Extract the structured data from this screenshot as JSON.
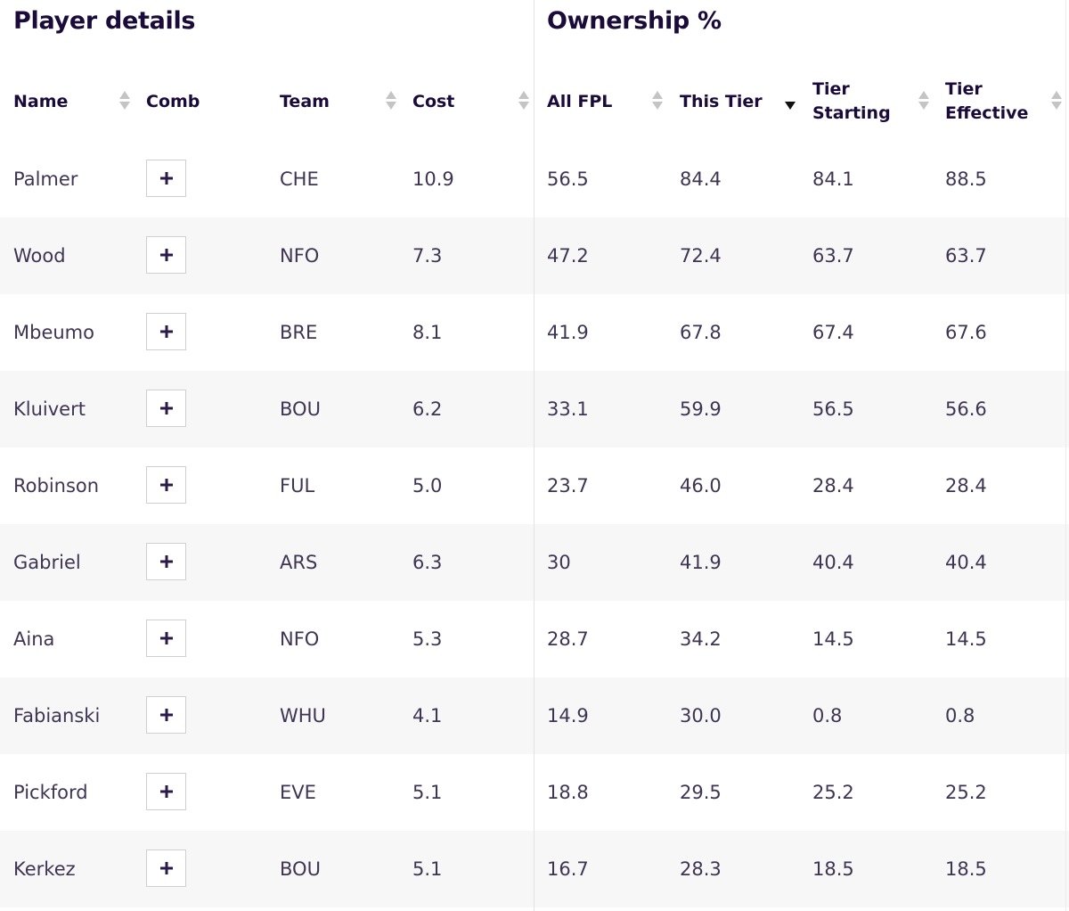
{
  "headings": {
    "player_details": "Player details",
    "ownership": "Ownership %"
  },
  "columns": [
    {
      "key": "name",
      "label": "Name",
      "sort": "none"
    },
    {
      "key": "comb",
      "label": "Comb"
    },
    {
      "key": "team",
      "label": "Team",
      "sort": "none"
    },
    {
      "key": "cost",
      "label": "Cost",
      "sort": "none"
    },
    {
      "key": "all_fpl",
      "label": "All FPL",
      "sort": "none"
    },
    {
      "key": "this_tier",
      "label": "This Tier",
      "sort": "descending"
    },
    {
      "key": "tier_starting",
      "label": "Tier\nStarting",
      "sort": "none"
    },
    {
      "key": "tier_effective",
      "label": "Tier\nEffective",
      "sort": "none"
    }
  ],
  "add_icon": "plus-icon",
  "rows": [
    {
      "name": "Palmer",
      "team": "CHE",
      "cost": "10.9",
      "all_fpl": "56.5",
      "this_tier": "84.4",
      "tier_starting": "84.1",
      "tier_effective": "88.5"
    },
    {
      "name": "Wood",
      "team": "NFO",
      "cost": "7.3",
      "all_fpl": "47.2",
      "this_tier": "72.4",
      "tier_starting": "63.7",
      "tier_effective": "63.7"
    },
    {
      "name": "Mbeumo",
      "team": "BRE",
      "cost": "8.1",
      "all_fpl": "41.9",
      "this_tier": "67.8",
      "tier_starting": "67.4",
      "tier_effective": "67.6"
    },
    {
      "name": "Kluivert",
      "team": "BOU",
      "cost": "6.2",
      "all_fpl": "33.1",
      "this_tier": "59.9",
      "tier_starting": "56.5",
      "tier_effective": "56.6"
    },
    {
      "name": "Robinson",
      "team": "FUL",
      "cost": "5.0",
      "all_fpl": "23.7",
      "this_tier": "46.0",
      "tier_starting": "28.4",
      "tier_effective": "28.4"
    },
    {
      "name": "Gabriel",
      "team": "ARS",
      "cost": "6.3",
      "all_fpl": "30",
      "this_tier": "41.9",
      "tier_starting": "40.4",
      "tier_effective": "40.4"
    },
    {
      "name": "Aina",
      "team": "NFO",
      "cost": "5.3",
      "all_fpl": "28.7",
      "this_tier": "34.2",
      "tier_starting": "14.5",
      "tier_effective": "14.5"
    },
    {
      "name": "Fabianski",
      "team": "WHU",
      "cost": "4.1",
      "all_fpl": "14.9",
      "this_tier": "30.0",
      "tier_starting": "0.8",
      "tier_effective": "0.8"
    },
    {
      "name": "Pickford",
      "team": "EVE",
      "cost": "5.1",
      "all_fpl": "18.8",
      "this_tier": "29.5",
      "tier_starting": "25.2",
      "tier_effective": "25.2"
    },
    {
      "name": "Kerkez",
      "team": "BOU",
      "cost": "5.1",
      "all_fpl": "16.7",
      "this_tier": "28.3",
      "tier_starting": "18.5",
      "tier_effective": "18.5"
    }
  ]
}
